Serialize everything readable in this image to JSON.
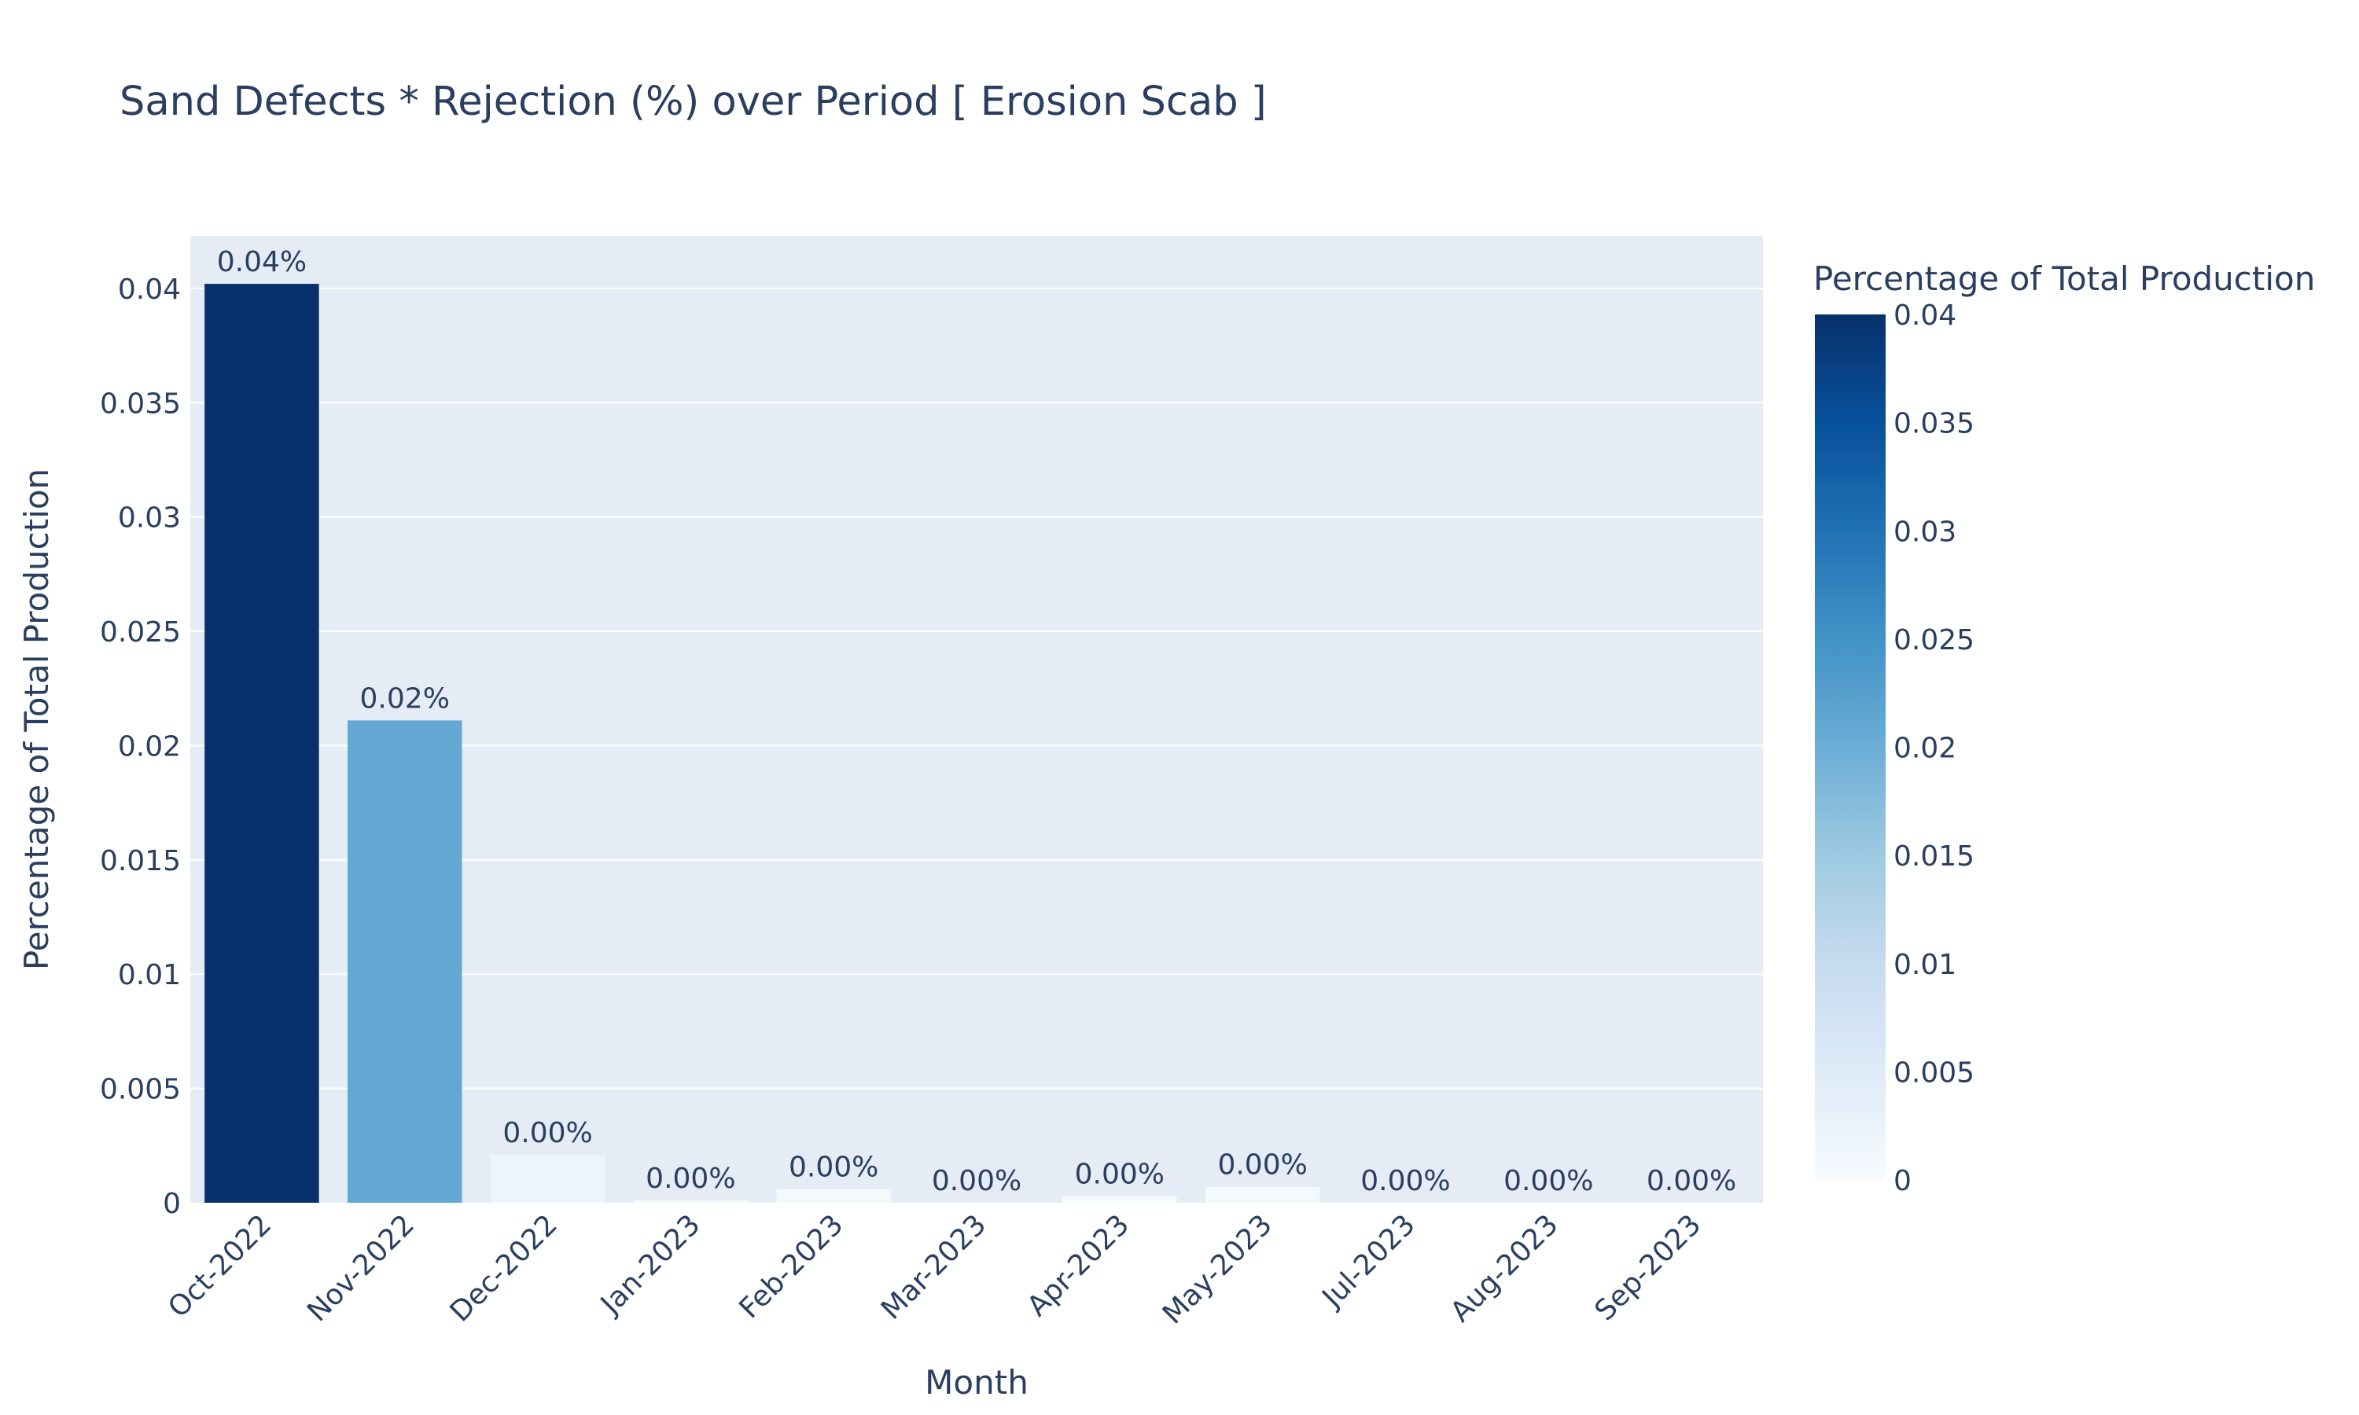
{
  "chart_data": {
    "type": "bar",
    "title": "Sand Defects * Rejection (%) over Period [ Erosion Scab ]",
    "xlabel": "Month",
    "ylabel": "Percentage of Total Production",
    "categories": [
      "Oct-2022",
      "Nov-2022",
      "Dec-2022",
      "Jan-2023",
      "Feb-2023",
      "Mar-2023",
      "Apr-2023",
      "May-2023",
      "Jul-2023",
      "Aug-2023",
      "Sep-2023"
    ],
    "values": [
      0.0402,
      0.0211,
      0.0021,
      0.0001,
      0.0006,
      0.0,
      0.0003,
      0.0007,
      0.0,
      0.0,
      0.0
    ],
    "data_labels": [
      "0.04%",
      "0.02%",
      "0.00%",
      "0.00%",
      "0.00%",
      "0.00%",
      "0.00%",
      "0.00%",
      "0.00%",
      "0.00%",
      "0.00%"
    ],
    "ylim": [
      0,
      0.0423
    ],
    "yticks": [
      0,
      0.005,
      0.01,
      0.015,
      0.02,
      0.025,
      0.03,
      0.035,
      0.04
    ],
    "ytick_labels": [
      "0",
      "0.005",
      "0.01",
      "0.015",
      "0.02",
      "0.025",
      "0.03",
      "0.035",
      "0.04"
    ],
    "grid": true,
    "colorbar": {
      "title": "Percentage of Total Production",
      "range": [
        0,
        0.04
      ],
      "tick_labels": [
        "0",
        "0.005",
        "0.01",
        "0.015",
        "0.02",
        "0.025",
        "0.03",
        "0.035",
        "0.04"
      ],
      "colorscale": "Blues",
      "placement": "right"
    },
    "colors": {
      "plot_background": "#e5ecf6",
      "grid": "#ffffff",
      "text": "#2a3f5f"
    }
  }
}
